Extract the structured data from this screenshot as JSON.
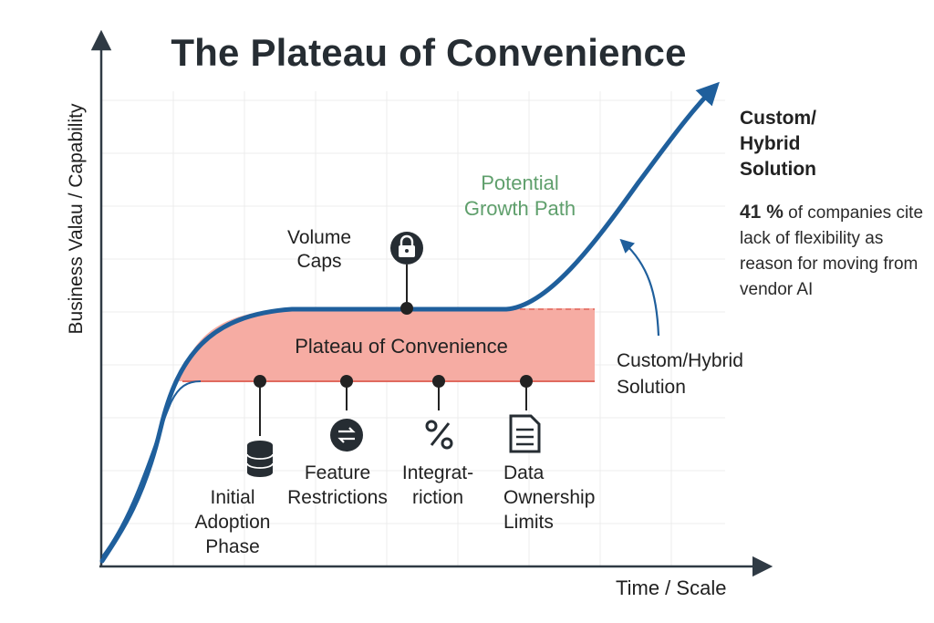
{
  "title": "The Plateau of Convenience",
  "axes": {
    "y_label": "Business Valau / Capability",
    "x_label": "Time / Scale"
  },
  "annotations": {
    "growth_path": "Potential\nGrowth Path",
    "volume_caps": "Volume\nCaps",
    "plateau": "Plateau of Convenience",
    "custom_title": "Custom/\nHybrid\nSolution",
    "stat_value": "41 %",
    "stat_text": " of companies cite lack of flexibility as reason for moving from vendor AI",
    "custom_label": "Custom/Hybrid\nSolution"
  },
  "limitations": [
    {
      "label": "Initial\nAdoption\nPhase",
      "icon": "database-icon"
    },
    {
      "label": "Feature\nRestrictions",
      "icon": "swap-icon"
    },
    {
      "label": "Integrat-\nriction",
      "icon": "scissors-icon"
    },
    {
      "label": "Data\nOwnership\nLimits",
      "icon": "document-icon"
    }
  ],
  "colors": {
    "curve": "#1f5f9c",
    "plateau_fill": "#f6aca3",
    "plateau_edge": "#e06a5f",
    "growth_text": "#5f9f6c",
    "ink": "#262d33"
  }
}
